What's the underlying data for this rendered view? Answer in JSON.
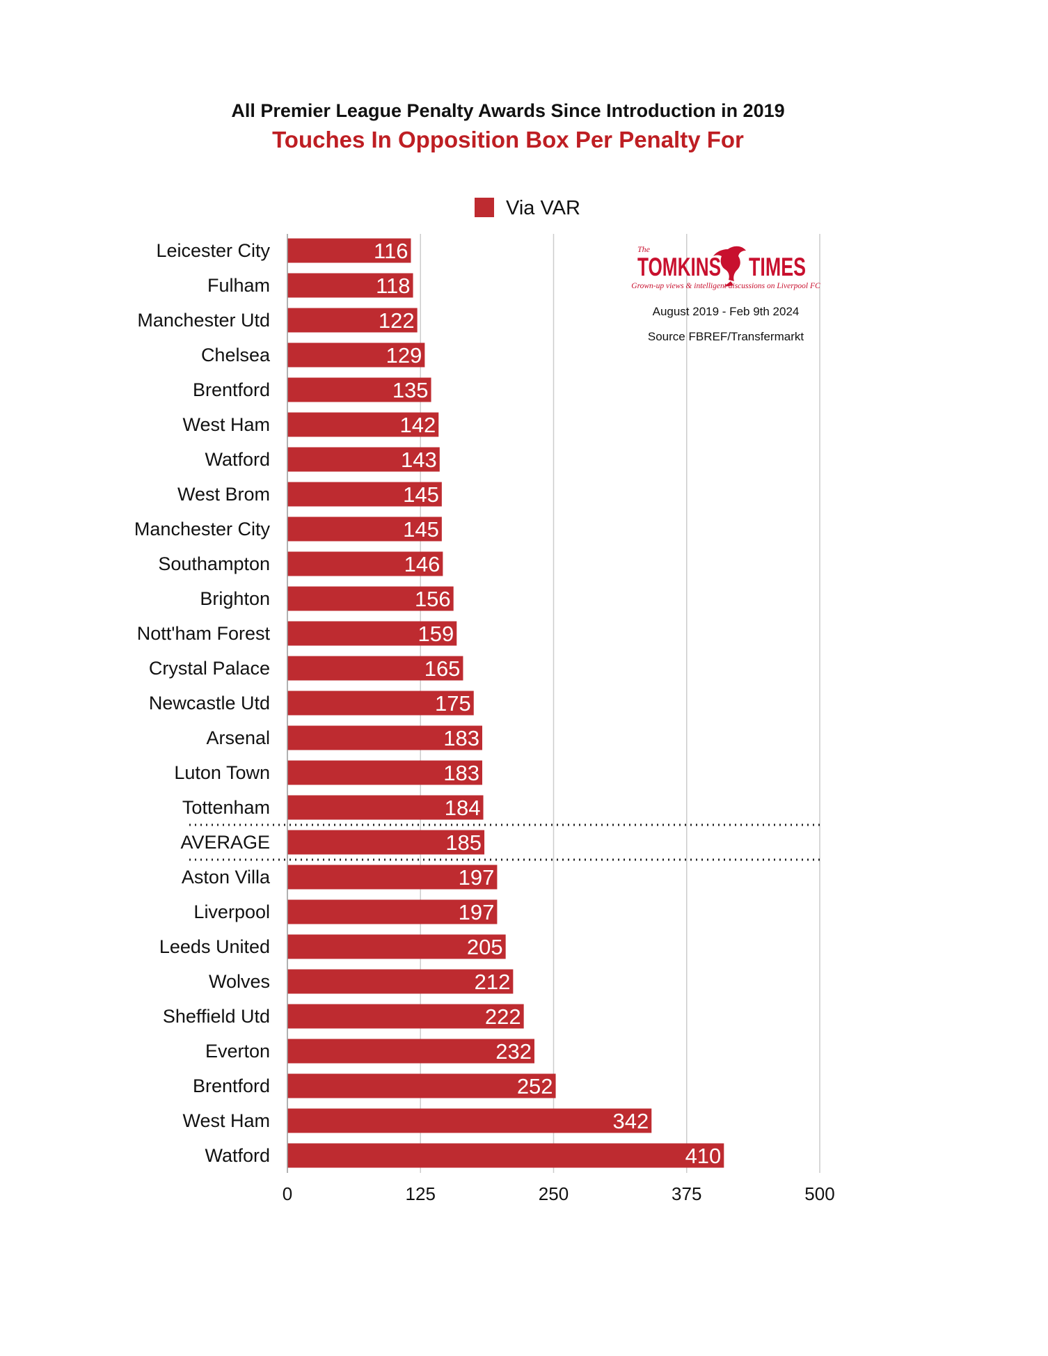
{
  "title": "All Premier League Penalty Awards Since Introduction in 2019",
  "subtitle": "Touches In Opposition Box Per Penalty For",
  "logo": {
    "small_word": "The",
    "word_left": "TOMKINS",
    "word_right": "TIMES",
    "tagline": "Grown-up views & intelligent discussions on Liverpool FC",
    "icon": "liverbird-icon"
  },
  "notes": {
    "period": "August 2019 - Feb 9th 2024",
    "source": "Source FBREF/Transfermarkt"
  },
  "colors": {
    "bar": "#BE2B30",
    "title": "#111111",
    "subtitle": "#BE1E23",
    "grid": "#CCCCCC",
    "brand": "#C8102E"
  },
  "chart_data": {
    "type": "bar",
    "orientation": "horizontal",
    "title": "All Premier League Penalty Awards Since Introduction in 2019",
    "subtitle": "Touches In Opposition Box Per Penalty For",
    "xlabel": "",
    "ylabel": "",
    "xlim": [
      0,
      500
    ],
    "ticks": [
      0,
      125,
      250,
      375,
      500
    ],
    "grid": "vertical",
    "legend": {
      "position": "top",
      "entries": [
        "Via VAR"
      ]
    },
    "categories": [
      "Leicester City",
      "Fulham",
      "Manchester Utd",
      "Chelsea",
      "Brentford",
      "West Ham",
      "Watford",
      "West Brom",
      "Manchester City",
      "Southampton",
      "Brighton",
      "Nott'ham Forest",
      "Crystal Palace",
      "Newcastle Utd",
      "Arsenal",
      "Luton Town",
      "Tottenham",
      "AVERAGE",
      "Aston Villa",
      "Liverpool",
      "Leeds United",
      "Wolves",
      "Sheffield Utd",
      "Everton",
      "Brentford",
      "West Ham",
      "Watford"
    ],
    "series": [
      {
        "name": "Via VAR",
        "values": [
          116,
          118,
          122,
          129,
          135,
          142,
          143,
          145,
          145,
          146,
          156,
          159,
          165,
          175,
          183,
          183,
          184,
          185,
          197,
          197,
          205,
          212,
          222,
          232,
          252,
          342,
          410
        ]
      }
    ],
    "highlight_category": "AVERAGE"
  }
}
